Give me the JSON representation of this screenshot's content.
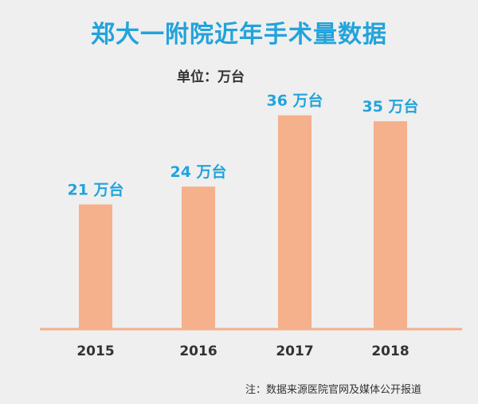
{
  "chart_data": {
    "type": "bar",
    "title": "郑大一附院近年手术量数据",
    "unit_label": "单位：万台",
    "categories": [
      "2015",
      "2016",
      "2017",
      "2018"
    ],
    "values": [
      21,
      24,
      36,
      35
    ],
    "value_suffix": " 万台",
    "ylim": [
      0,
      42
    ],
    "grid": false,
    "legend": "none",
    "bar_color": "#f5b08c",
    "axis_color": "#f5b08c",
    "label_color": "#22a3db",
    "note": "注：数据来源医院官网及媒体公开报道"
  }
}
